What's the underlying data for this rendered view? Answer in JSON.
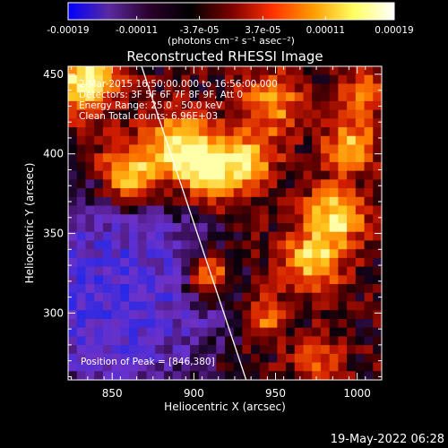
{
  "chart_data": {
    "type": "heatmap",
    "title": "Reconstructed RHESSI Image",
    "xlabel": "Heliocentric X (arcsec)",
    "ylabel": "Heliocentric Y (arcsec)",
    "xlim": [
      823,
      1015
    ],
    "ylim": [
      258,
      455
    ],
    "xticks": [
      850,
      900,
      950,
      1000
    ],
    "yticks": [
      300,
      350,
      400,
      450
    ],
    "colorbar": {
      "min": -0.00019,
      "max": 0.00019,
      "ticks": [
        -0.00019,
        -0.00011,
        -3.7e-05,
        3.7e-05,
        0.00011,
        0.00019
      ],
      "tick_labels": [
        "-0.00019",
        "-0.00011",
        "-3.7e-05",
        "3.7e-05",
        "0.00011",
        "0.00019"
      ],
      "unit_label": "(photons cm⁻² s⁻¹ asec⁻²)",
      "colors": [
        "#0000ff",
        "#5a2aa0",
        "#2a002a",
        "#000000",
        "#7a0000",
        "#ff3000",
        "#ff9a00",
        "#ffff60",
        "#ffffff"
      ]
    },
    "annotations": [
      "2-Mar-2015 16:50:00.000 to 16:56:00.000",
      "Detectors: 3F 5F 6F 7F 8F 9F, Att 0",
      "Energy Range: 25.0 - 50.0 keV",
      "Clean      Total counts: 6.96E+03"
    ],
    "peak_label": "Position of Peak = [846,380]",
    "peak": [
      846,
      380
    ],
    "limb_line": [
      [
        868,
        455
      ],
      [
        932,
        258
      ]
    ],
    "timestamp": "19-May-2022 06:28"
  }
}
